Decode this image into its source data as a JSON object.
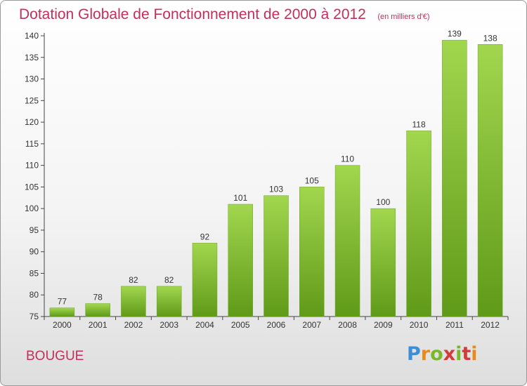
{
  "chart_data": {
    "type": "bar",
    "title": "Dotation Globale de Fonctionnement de 2000 à 2012",
    "subtitle": "(en milliers d'€)",
    "categories": [
      "2000",
      "2001",
      "2002",
      "2003",
      "2004",
      "2005",
      "2006",
      "2007",
      "2008",
      "2009",
      "2010",
      "2011",
      "2012"
    ],
    "values": [
      77,
      78,
      82,
      82,
      92,
      101,
      103,
      105,
      110,
      100,
      118,
      139,
      138
    ],
    "ylim": [
      75,
      140
    ],
    "yticks": [
      75,
      80,
      85,
      90,
      95,
      100,
      105,
      110,
      115,
      120,
      125,
      130,
      135,
      140
    ],
    "grid": false,
    "bar_color": "#7cbb2f"
  },
  "footer": {
    "commune": "BOUGUE",
    "brand": "Proxiti"
  }
}
